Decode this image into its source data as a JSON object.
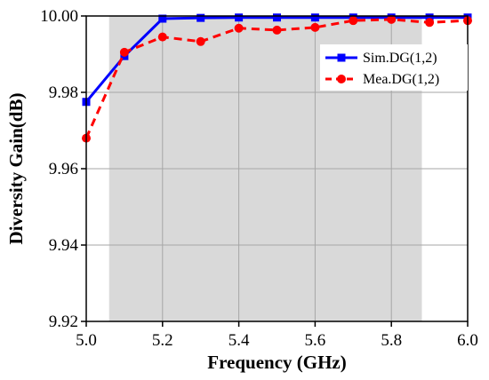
{
  "chart_data": {
    "type": "line",
    "xlabel": "Frequency (GHz)",
    "ylabel": "Diversity Gain(dB)",
    "xlim": [
      5.0,
      6.0
    ],
    "ylim": [
      9.92,
      10.0
    ],
    "x_ticks": [
      "5.0",
      "5.2",
      "5.4",
      "5.6",
      "5.8",
      "6.0"
    ],
    "y_ticks": [
      "9.92",
      "9.94",
      "9.96",
      "9.98",
      "10.00"
    ],
    "grid": true,
    "legend_position": "top-right",
    "shaded_band": {
      "x_start": 5.06,
      "x_end": 5.88,
      "color": "#d9d9d9"
    },
    "x": [
      5.0,
      5.1,
      5.2,
      5.3,
      5.4,
      5.5,
      5.6,
      5.7,
      5.8,
      5.9,
      6.0
    ],
    "series": [
      {
        "name": "Sim.DG(1,2)",
        "color": "#0000ff",
        "line_style": "solid",
        "marker": "square",
        "values": [
          9.9775,
          9.9895,
          9.9993,
          9.9995,
          9.9996,
          9.9996,
          9.9996,
          9.9996,
          9.9996,
          9.9996,
          9.9996
        ]
      },
      {
        "name": "Mea.DG(1,2)",
        "color": "#ff0000",
        "line_style": "dashed",
        "marker": "circle",
        "values": [
          9.968,
          9.9905,
          9.9945,
          9.9933,
          9.9968,
          9.9963,
          9.997,
          9.9988,
          9.9991,
          9.9983,
          9.9988
        ]
      }
    ]
  }
}
